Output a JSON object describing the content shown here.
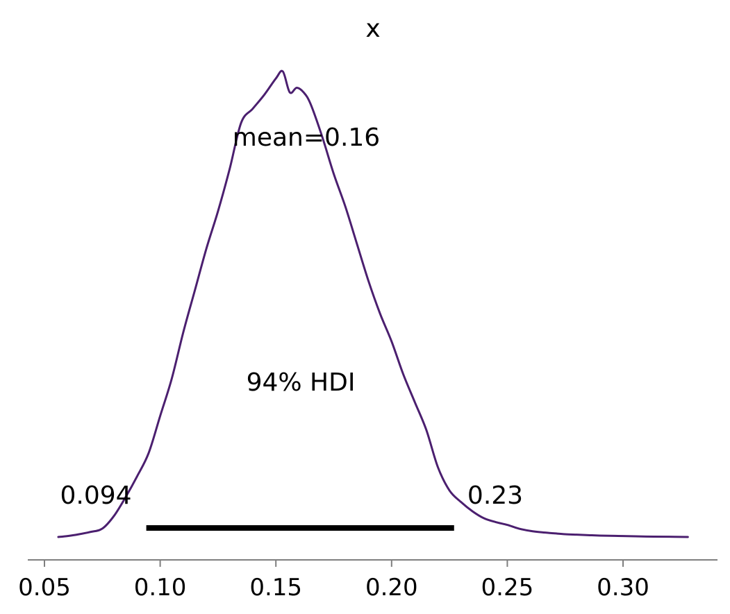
{
  "chart_data": {
    "type": "line",
    "title": "x",
    "xlabel": "",
    "ylabel": "",
    "xlim": [
      0.045,
      0.345
    ],
    "xticks": [
      0.05,
      0.1,
      0.15,
      0.2,
      0.25,
      0.3
    ],
    "xtick_labels": [
      "0.05",
      "0.10",
      "0.15",
      "0.20",
      "0.25",
      "0.30"
    ],
    "grid": false,
    "legend": "none",
    "series": [
      {
        "color": "#4b1f6f",
        "x": [
          0.056,
          0.06,
          0.065,
          0.07,
          0.075,
          0.08,
          0.085,
          0.09,
          0.095,
          0.1,
          0.105,
          0.11,
          0.115,
          0.12,
          0.125,
          0.13,
          0.135,
          0.14,
          0.145,
          0.15,
          0.153,
          0.156,
          0.159,
          0.162,
          0.165,
          0.17,
          0.175,
          0.18,
          0.185,
          0.19,
          0.195,
          0.2,
          0.205,
          0.21,
          0.215,
          0.22,
          0.225,
          0.23,
          0.235,
          0.24,
          0.245,
          0.25,
          0.255,
          0.26,
          0.265,
          0.27,
          0.275,
          0.28,
          0.285,
          0.29,
          0.3,
          0.31,
          0.32,
          0.328
        ],
        "y": [
          0.0,
          0.002,
          0.006,
          0.011,
          0.018,
          0.045,
          0.085,
          0.13,
          0.18,
          0.26,
          0.34,
          0.44,
          0.53,
          0.62,
          0.7,
          0.79,
          0.89,
          0.92,
          0.95,
          0.985,
          1.0,
          0.955,
          0.965,
          0.955,
          0.93,
          0.86,
          0.78,
          0.71,
          0.63,
          0.55,
          0.48,
          0.42,
          0.35,
          0.29,
          0.23,
          0.15,
          0.1,
          0.075,
          0.055,
          0.04,
          0.032,
          0.026,
          0.018,
          0.013,
          0.01,
          0.008,
          0.006,
          0.005,
          0.004,
          0.003,
          0.002,
          0.001,
          0.0005,
          0.0
        ]
      }
    ],
    "annotations": {
      "mean_label": "mean=0.16",
      "hdi_label": "94% HDI",
      "hdi_low_label": "0.094",
      "hdi_high_label": "0.23"
    },
    "hdi": {
      "low": 0.094,
      "high": 0.227
    }
  }
}
